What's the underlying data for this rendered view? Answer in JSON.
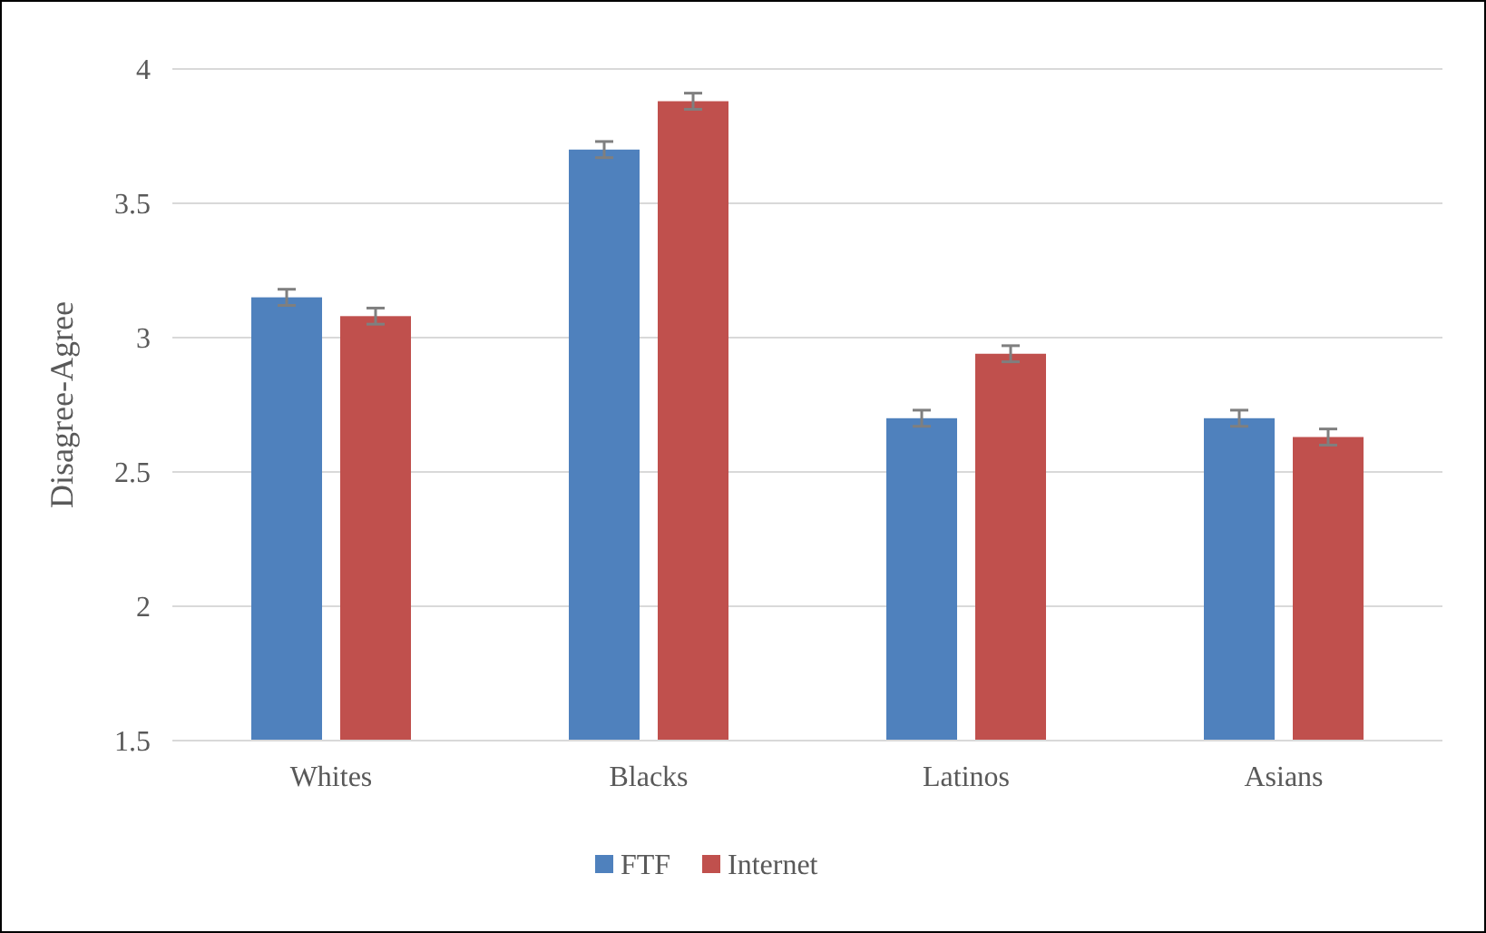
{
  "chart_data": {
    "type": "bar",
    "ylabel": "Disagree-Agree",
    "categories": [
      "Whites",
      "Blacks",
      "Latinos",
      "Asians"
    ],
    "series": [
      {
        "name": "FTF",
        "color": "#4f81bd",
        "values": [
          3.15,
          3.7,
          2.7,
          2.7
        ],
        "errors": [
          0.03,
          0.03,
          0.03,
          0.03
        ]
      },
      {
        "name": "Internet",
        "color": "#c0504d",
        "values": [
          3.08,
          3.88,
          2.94,
          2.63
        ],
        "errors": [
          0.03,
          0.03,
          0.03,
          0.03
        ]
      }
    ],
    "ylim": [
      1.5,
      4
    ],
    "yticks": [
      1.5,
      2,
      2.5,
      3,
      3.5,
      4
    ],
    "grid": "y",
    "legend": "bottom"
  }
}
